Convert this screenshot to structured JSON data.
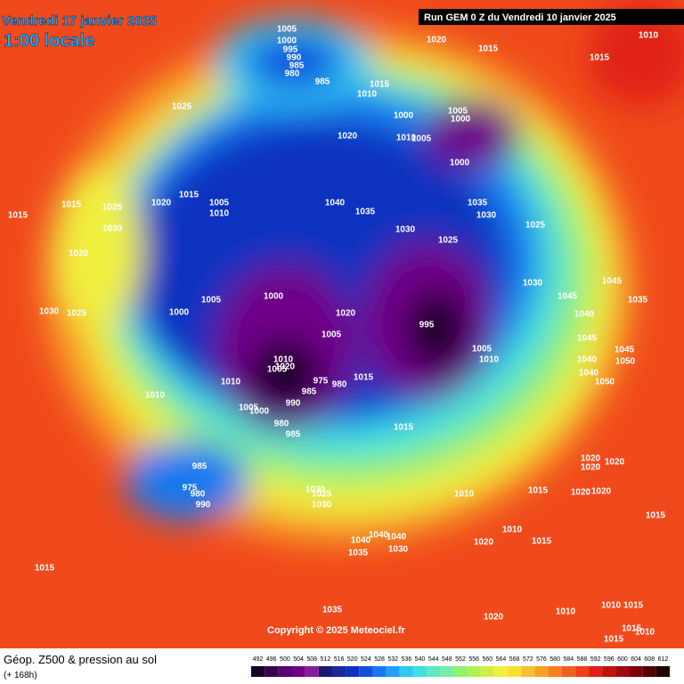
{
  "header": {
    "date": "Vendredi 17 janvier 2025",
    "time": "1:00 locale",
    "run": "Run GEM 0 Z du Vendredi 10 janvier 2025"
  },
  "copyright": "Copyright © 2025 Meteociel.fr",
  "footer": {
    "title": "Géop. Z500 & pression au sol",
    "lead": "(+ 168h)"
  },
  "colorbar": {
    "values": [
      492,
      496,
      500,
      504,
      508,
      512,
      516,
      520,
      524,
      528,
      532,
      536,
      540,
      544,
      548,
      552,
      556,
      560,
      564,
      568,
      572,
      576,
      580,
      584,
      588,
      592,
      596,
      600,
      604,
      608,
      612
    ],
    "colors": [
      "#1a0028",
      "#3a0050",
      "#55006e",
      "#700088",
      "#8a1aa0",
      "#1a1a70",
      "#1a2a9a",
      "#1030c0",
      "#1050e0",
      "#1878f0",
      "#20a0f8",
      "#30c8f0",
      "#40e0e0",
      "#60e8c0",
      "#70f0a0",
      "#90f070",
      "#b0f050",
      "#d0f040",
      "#f0f040",
      "#f8e030",
      "#f8c030",
      "#f8a028",
      "#f88020",
      "#f06020",
      "#f04018",
      "#e02018",
      "#c01010",
      "#a00810",
      "#800008",
      "#500000",
      "#200000"
    ]
  },
  "isobar_labels": [
    1005,
    1000,
    995,
    990,
    985,
    980,
    985,
    1020,
    1015,
    1010,
    1015,
    1025,
    1015,
    1010,
    1020,
    1000,
    1005,
    1000,
    1010,
    1005,
    1000,
    1015,
    1015,
    1025,
    1020,
    1005,
    1010,
    1040,
    1035,
    1035,
    1030,
    1015,
    1030,
    1030,
    1025,
    1025,
    1020,
    1030,
    1000,
    1005,
    1045,
    1045,
    1040,
    1035,
    1030,
    1025,
    1000,
    1020,
    995,
    1005,
    1045,
    1005,
    1010,
    1045,
    1050,
    1040,
    1010,
    1005,
    1020,
    975,
    1015,
    980,
    985,
    1040,
    1010,
    1050,
    1010,
    990,
    1005,
    1000,
    980,
    985,
    1015,
    1020,
    1020,
    1020,
    985,
    975,
    980,
    990,
    1030,
    1025,
    1030,
    1010,
    1015,
    1020,
    1020,
    1015,
    1010,
    1020,
    1015,
    1040,
    1040,
    1040,
    1035,
    1030,
    1015,
    1035,
    1020,
    1010,
    1010,
    1015,
    1015,
    1010,
    1015
  ]
}
